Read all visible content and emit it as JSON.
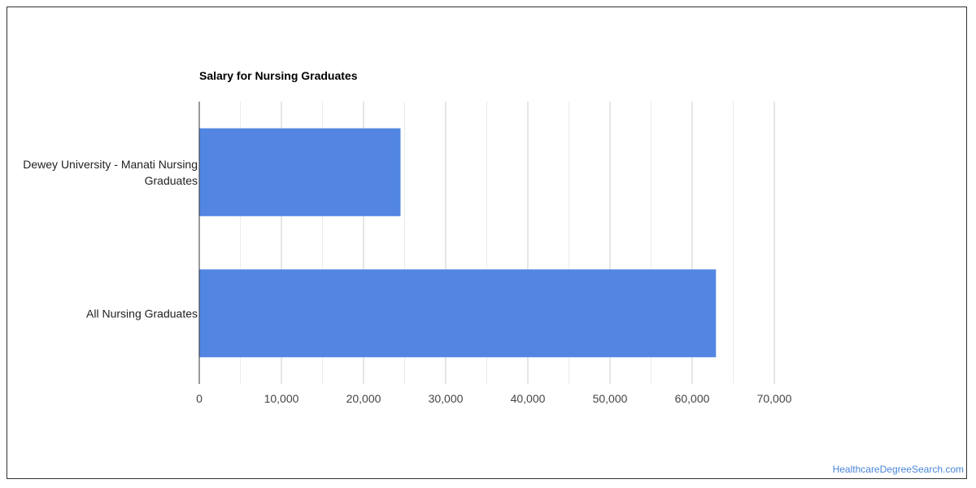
{
  "chart_data": {
    "type": "bar",
    "orientation": "horizontal",
    "title": "Salary for Nursing Graduates",
    "categories": [
      [
        "Dewey University - Manati Nursing",
        "Graduates"
      ],
      [
        "All Nursing Graduates"
      ]
    ],
    "values": [
      24500,
      62900
    ],
    "xlim": [
      0,
      70000
    ],
    "xticks": [
      0,
      10000,
      20000,
      30000,
      40000,
      50000,
      60000,
      70000
    ],
    "xtick_labels": [
      "0",
      "10,000",
      "20,000",
      "30,000",
      "40,000",
      "50,000",
      "60,000",
      "70,000"
    ],
    "grid": true,
    "bar_color": "#5286e2",
    "xlabel": "",
    "ylabel": ""
  },
  "footer": {
    "source": "HealthcareDegreeSearch.com"
  }
}
